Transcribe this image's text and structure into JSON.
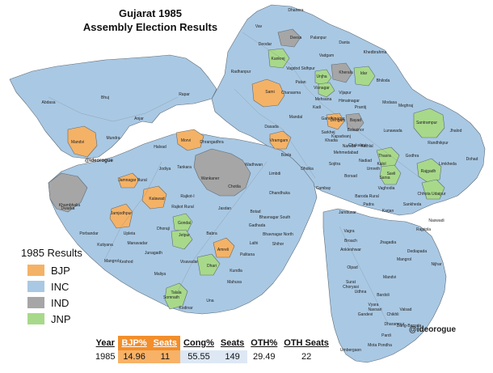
{
  "title": {
    "line1": "Gujarat 1985",
    "line2": "Assembly Election Results"
  },
  "colors": {
    "bjp": "#f4b266",
    "inc": "#a9c8e3",
    "ind": "#a6a6a6",
    "jnp": "#a8d98a",
    "border": "#5f6c78",
    "header_bjp": "#f28e2b",
    "cell_bjp": "#f7b267",
    "cell_cong": "#dde8f4"
  },
  "legend": {
    "title": "1985 Results",
    "items": [
      {
        "label": "BJP",
        "color": "#f4b266"
      },
      {
        "label": "INC",
        "color": "#a9c8e3"
      },
      {
        "label": "IND",
        "color": "#a6a6a6"
      },
      {
        "label": "JNP",
        "color": "#a8d98a"
      }
    ]
  },
  "watermarks": {
    "small": "@ideorogue",
    "large": "@ideorogue"
  },
  "constituencies": [
    "Vav",
    "Dhanera",
    "Deesa",
    "Palanpur",
    "Danta",
    "Deodar",
    "Kankrej",
    "Vadgam",
    "Khedbrahma",
    "Kheralu",
    "Idar",
    "Radhanpur",
    "Vagdod Sidhpur",
    "Unjha",
    "Visnagar",
    "Bhiloda",
    "Sami",
    "Patan",
    "Chanasma",
    "Mehsana",
    "Vijapur",
    "Himatnagar",
    "Modasa",
    "Abdasa",
    "Bhuj",
    "Rapar",
    "Kadi",
    "Gandhinagar",
    "Prantij",
    "Meghraj",
    "Anjar",
    "Dehgam",
    "Bayad",
    "Santrampur",
    "Mandal",
    "Sarkhej",
    "Lunawada",
    "Jhalod",
    "Dasada",
    "Viramgam",
    "Khadia",
    "Kapadvanj",
    "Balasinor",
    "Randhikpur",
    "Mandvi",
    "Mundra",
    "Morvi",
    "Halvad",
    "Dhrangadhra",
    "Naroda",
    "Chakalasi",
    "Godhra",
    "Limkheda",
    "Mehmedabad",
    "Kathlal",
    "Thasra",
    "Kalol",
    "Dohad",
    "Jodiya",
    "Tankara",
    "Wadhwan",
    "Bavla",
    "Limbdi",
    "Dholka",
    "Sojitra",
    "Nadiad",
    "Umreth",
    "Savli",
    "Rajgadh",
    "Jamnagar Rural",
    "Wankaner",
    "Chotila",
    "Jetpur",
    "Cambay",
    "Borsad",
    "Sarsa",
    "Vaghodia",
    "Chhota Udaipur",
    "Kalawad",
    "Rajkot-I",
    "Dhandhuka",
    "Baroda Rural",
    "Dwarka",
    "Khambhalia",
    "Rajkot Rural",
    "Jasdan",
    "Gondal",
    "Botad",
    "Bhavnagar South",
    "Padra",
    "Karjan",
    "Sankheda",
    "Jamjodhpur",
    "Porbandar",
    "Upleta",
    "Dhoraji",
    "Babra",
    "Gadhada",
    "Bhavnagar North",
    "Jambusar",
    "Naswadi",
    "Kutiyana",
    "Manavadar",
    "Junagadh",
    "Amreli",
    "Lathi",
    "Shihor",
    "Vagra",
    "Broach",
    "Jhagadia",
    "Rajpipla",
    "Keshod",
    "Mangrol",
    "Visavadar",
    "Dhari",
    "Kundla",
    "Palitana",
    "Dediapada",
    "Ankleshwar",
    "Maliya",
    "Talala",
    "Mahuva",
    "Olpad",
    "Mangrol",
    "Somnath",
    "Kodinar",
    "Una",
    "Choryasi",
    "Udhna",
    "Mandvi",
    "Nijhar",
    "Surat",
    "Bardoli",
    "Vyara",
    "Gandevi",
    "Navsari",
    "Chikhli",
    "Valsad",
    "Dang-Bansda",
    "Dharampur",
    "Pardi",
    "Umbergaon",
    "Mota Pondha"
  ],
  "results_table": {
    "headers": [
      "Year",
      "BJP%",
      "Seats",
      "Cong%",
      "Seats",
      "OTH%",
      "OTH Seats"
    ],
    "row": [
      "1985",
      "14.96",
      "11",
      "55.55",
      "149",
      "29.49",
      "22"
    ]
  }
}
